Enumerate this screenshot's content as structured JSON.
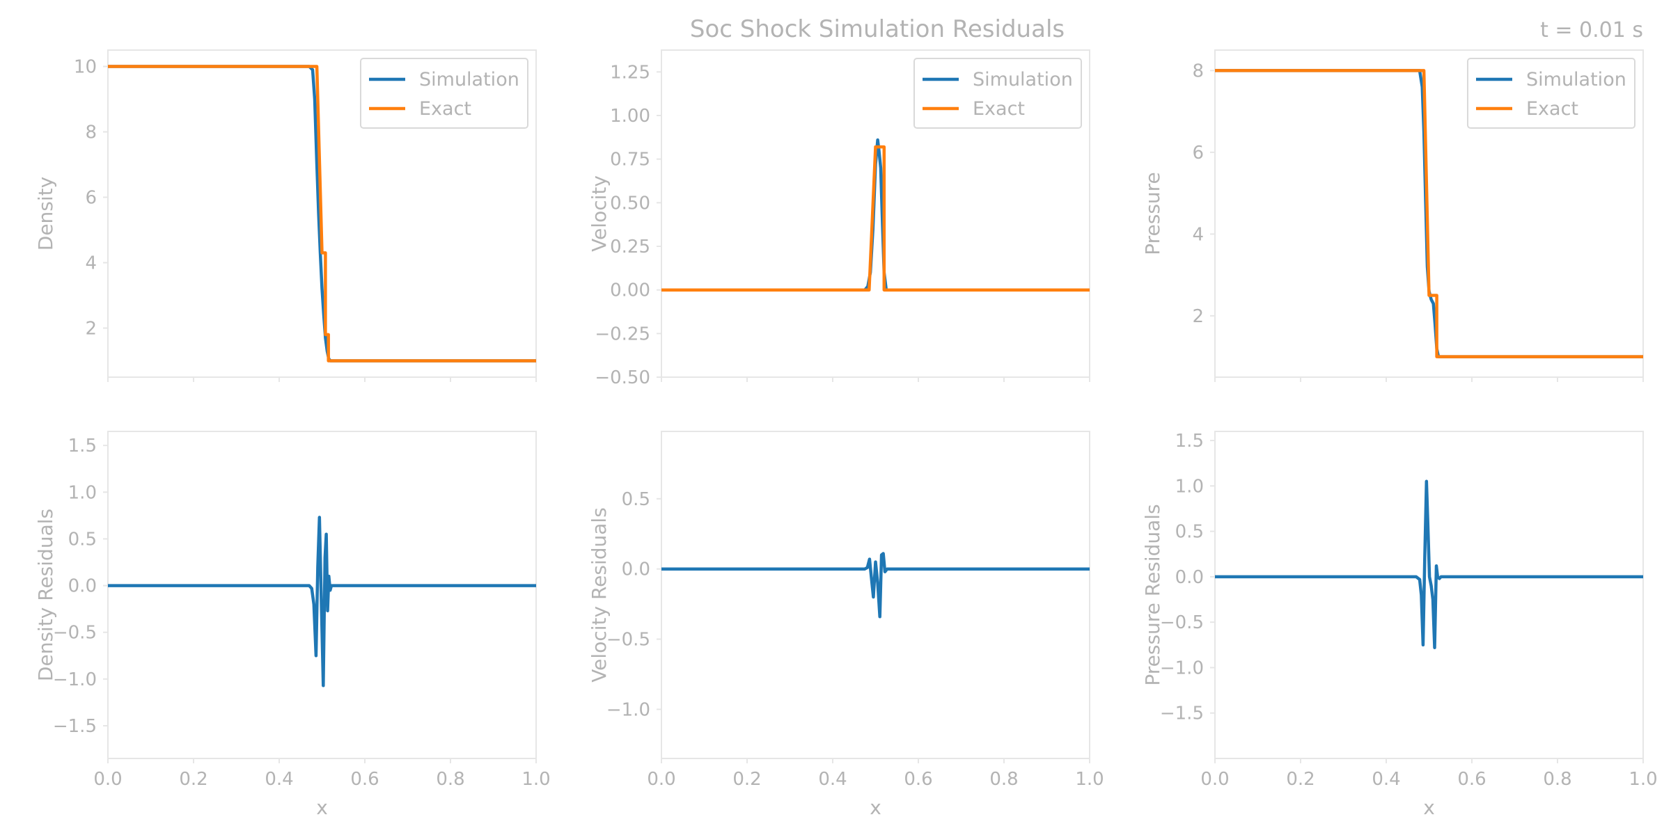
{
  "figure": {
    "title": "Soc Shock Simulation Residuals",
    "time_label": "t = 0.01 s"
  },
  "colors": {
    "simulation": "#1f77b4",
    "exact": "#ff7f0e",
    "axis_text": "#b3b3b3",
    "frame": "#e6e6e6"
  },
  "chart_data": [
    {
      "type": "line",
      "id": "density",
      "xlabel": "",
      "ylabel": "Density",
      "xlim": [
        0,
        1
      ],
      "ylim": [
        0.5,
        10.5
      ],
      "yticks": [
        2,
        4,
        6,
        8,
        10
      ],
      "ytick_labels": [
        "2",
        "4",
        "6",
        "8",
        "10"
      ],
      "xticks": [
        0,
        0.2,
        0.4,
        0.6,
        0.8,
        1.0
      ],
      "xtick_labels": [],
      "legend": {
        "position": "top-right",
        "entries": [
          "Simulation",
          "Exact"
        ]
      },
      "series": [
        {
          "name": "Simulation",
          "color": "#1f77b4",
          "x": [
            0,
            0.47,
            0.478,
            0.483,
            0.488,
            0.492,
            0.496,
            0.5,
            0.504,
            0.508,
            0.512,
            0.516,
            0.52,
            1.0
          ],
          "y": [
            10,
            10,
            9.9,
            9.0,
            7.0,
            5.5,
            4.3,
            3.2,
            2.4,
            1.7,
            1.3,
            1.05,
            1.0,
            1.0
          ]
        },
        {
          "name": "Exact",
          "color": "#ff7f0e",
          "x": [
            0,
            0.488,
            0.5,
            0.5,
            0.508,
            0.508,
            0.515,
            0.515,
            1.0
          ],
          "y": [
            10,
            10,
            4.3,
            4.3,
            4.3,
            1.8,
            1.8,
            1.0,
            1.0
          ]
        }
      ]
    },
    {
      "type": "line",
      "id": "velocity",
      "xlabel": "",
      "ylabel": "Velocity",
      "xlim": [
        0,
        1
      ],
      "ylim": [
        -0.5,
        1.375
      ],
      "yticks": [
        -0.5,
        -0.25,
        0,
        0.25,
        0.5,
        0.75,
        1.0,
        1.25
      ],
      "ytick_labels": [
        "−0.50",
        "−0.25",
        "0.00",
        "0.25",
        "0.50",
        "0.75",
        "1.00",
        "1.25"
      ],
      "xticks": [
        0,
        0.2,
        0.4,
        0.6,
        0.8,
        1.0
      ],
      "xtick_labels": [],
      "legend": {
        "position": "top-right",
        "entries": [
          "Simulation",
          "Exact"
        ]
      },
      "series": [
        {
          "name": "Simulation",
          "color": "#1f77b4",
          "x": [
            0,
            0.475,
            0.482,
            0.488,
            0.494,
            0.5,
            0.505,
            0.508,
            0.512,
            0.516,
            0.52,
            0.525,
            1.0
          ],
          "y": [
            0,
            0,
            0.02,
            0.1,
            0.35,
            0.72,
            0.86,
            0.8,
            0.7,
            0.4,
            0.1,
            0,
            0
          ]
        },
        {
          "name": "Exact",
          "color": "#ff7f0e",
          "x": [
            0,
            0.485,
            0.5,
            0.52,
            0.52,
            1.0
          ],
          "y": [
            0,
            0,
            0.82,
            0.82,
            0,
            0
          ]
        }
      ]
    },
    {
      "type": "line",
      "id": "pressure",
      "xlabel": "",
      "ylabel": "Pressure",
      "xlim": [
        0,
        1
      ],
      "ylim": [
        0.5,
        8.5
      ],
      "yticks": [
        2,
        4,
        6,
        8
      ],
      "ytick_labels": [
        "2",
        "4",
        "6",
        "8"
      ],
      "xticks": [
        0,
        0.2,
        0.4,
        0.6,
        0.8,
        1.0
      ],
      "xtick_labels": [],
      "legend": {
        "position": "top-right",
        "entries": [
          "Simulation",
          "Exact"
        ]
      },
      "series": [
        {
          "name": "Simulation",
          "color": "#1f77b4",
          "x": [
            0,
            0.478,
            0.484,
            0.488,
            0.492,
            0.496,
            0.5,
            0.505,
            0.51,
            0.514,
            0.518,
            0.522,
            1.0
          ],
          "y": [
            8,
            8,
            7.6,
            6.5,
            4.8,
            3.2,
            2.6,
            2.4,
            2.3,
            1.8,
            1.2,
            1.0,
            1.0
          ]
        },
        {
          "name": "Exact",
          "color": "#ff7f0e",
          "x": [
            0,
            0.488,
            0.5,
            0.5,
            0.518,
            0.518,
            1.0
          ],
          "y": [
            8,
            8,
            2.5,
            2.5,
            2.5,
            1.0,
            1.0
          ]
        }
      ]
    },
    {
      "type": "line",
      "id": "density-residuals",
      "xlabel": "x",
      "ylabel": "Density Residuals",
      "xlim": [
        0,
        1
      ],
      "ylim": [
        -1.85,
        1.65
      ],
      "yticks": [
        -1.5,
        -1.0,
        -0.5,
        0,
        0.5,
        1.0,
        1.5
      ],
      "ytick_labels": [
        "−1.5",
        "−1.0",
        "−0.5",
        "0.0",
        "0.5",
        "1.0",
        "1.5"
      ],
      "xticks": [
        0,
        0.2,
        0.4,
        0.6,
        0.8,
        1.0
      ],
      "xtick_labels": [
        "0.0",
        "0.2",
        "0.4",
        "0.6",
        "0.8",
        "1.0"
      ],
      "series": [
        {
          "name": "",
          "color": "#1f77b4",
          "x": [
            0,
            0.47,
            0.476,
            0.481,
            0.486,
            0.49,
            0.494,
            0.499,
            0.503,
            0.507,
            0.51,
            0.513,
            0.516,
            0.519,
            0.522,
            0.526,
            1.0
          ],
          "y": [
            0,
            0,
            -0.03,
            -0.2,
            -0.75,
            0.2,
            0.73,
            -0.3,
            -1.07,
            0.3,
            0.55,
            -0.27,
            0.1,
            -0.05,
            0.0,
            0,
            0
          ]
        }
      ]
    },
    {
      "type": "line",
      "id": "velocity-residuals",
      "xlabel": "x",
      "ylabel": "Velocity Residuals",
      "xlim": [
        0,
        1
      ],
      "ylim": [
        -1.35,
        0.98
      ],
      "yticks": [
        -1.0,
        -0.5,
        0,
        0.5
      ],
      "ytick_labels": [
        "−1.0",
        "−0.5",
        "0.0",
        "0.5"
      ],
      "xticks": [
        0,
        0.2,
        0.4,
        0.6,
        0.8,
        1.0
      ],
      "xtick_labels": [
        "0.0",
        "0.2",
        "0.4",
        "0.6",
        "0.8",
        "1.0"
      ],
      "series": [
        {
          "name": "",
          "color": "#1f77b4",
          "x": [
            0,
            0.475,
            0.481,
            0.486,
            0.49,
            0.495,
            0.5,
            0.505,
            0.51,
            0.514,
            0.518,
            0.522,
            0.527,
            1.0
          ],
          "y": [
            0,
            0,
            0.01,
            0.07,
            -0.05,
            -0.2,
            0.05,
            -0.1,
            -0.34,
            0.1,
            0.11,
            -0.02,
            0,
            0
          ]
        }
      ]
    },
    {
      "type": "line",
      "id": "pressure-residuals",
      "xlabel": "x",
      "ylabel": "Pressure Residuals",
      "xlim": [
        0,
        1
      ],
      "ylim": [
        -2.0,
        1.6
      ],
      "yticks": [
        -1.5,
        -1.0,
        -0.5,
        0,
        0.5,
        1.0,
        1.5
      ],
      "ytick_labels": [
        "−1.5",
        "−1.0",
        "−0.5",
        "0.0",
        "0.5",
        "1.0",
        "1.5"
      ],
      "xticks": [
        0,
        0.2,
        0.4,
        0.6,
        0.8,
        1.0
      ],
      "xtick_labels": [
        "0.0",
        "0.2",
        "0.4",
        "0.6",
        "0.8",
        "1.0"
      ],
      "series": [
        {
          "name": "",
          "color": "#1f77b4",
          "x": [
            0,
            0.47,
            0.478,
            0.482,
            0.486,
            0.49,
            0.494,
            0.497,
            0.501,
            0.505,
            0.509,
            0.513,
            0.517,
            0.52,
            0.524,
            0.528,
            1.0
          ],
          "y": [
            0,
            0,
            -0.03,
            -0.2,
            -0.75,
            0.2,
            1.05,
            0.6,
            0.0,
            -0.1,
            -0.25,
            -0.78,
            0.12,
            0.0,
            -0.02,
            0,
            0
          ]
        }
      ]
    }
  ]
}
